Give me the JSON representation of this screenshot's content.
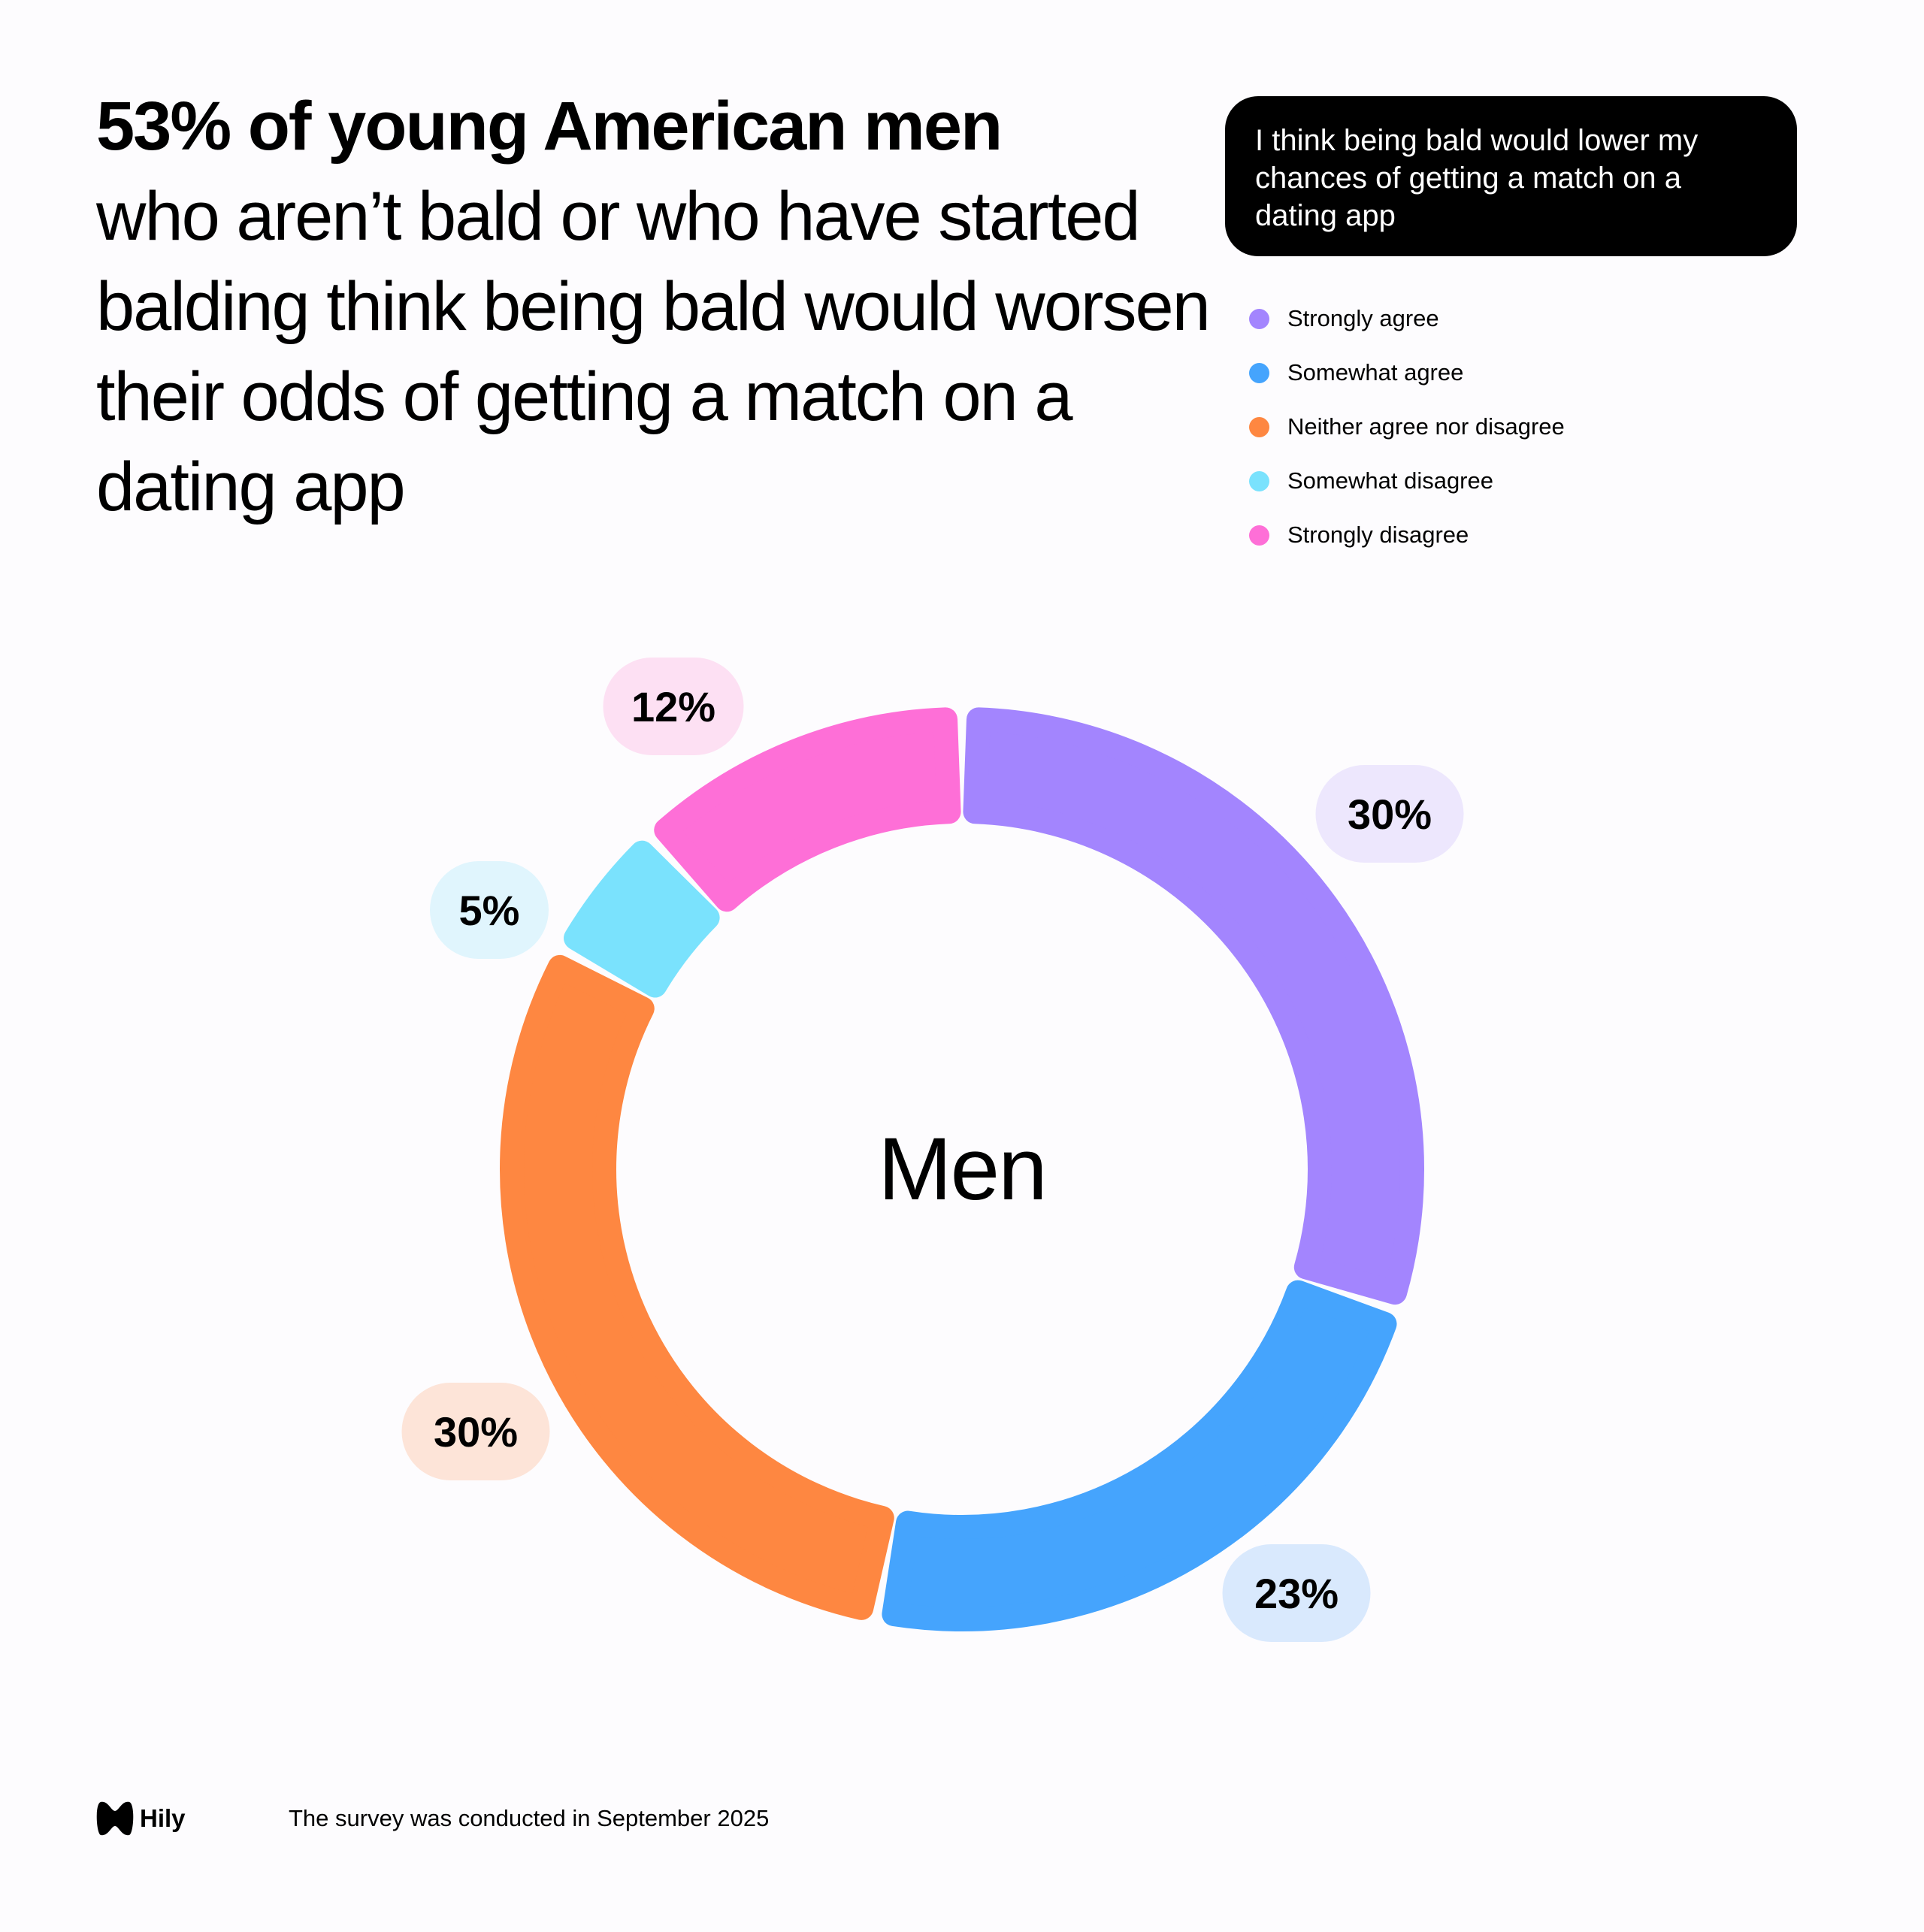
{
  "title": {
    "bold": "53% of young American men",
    "rest": "who aren’t bald or who have started balding think being bald would worsen their odds of getting a match on a dating app"
  },
  "question": "I think being bald would lower my chances of getting a match on a dating app",
  "center_label": "Men",
  "footer": {
    "brand": "Hily",
    "note": "The survey was conducted in September 2025"
  },
  "chart_data": {
    "type": "pie",
    "variant": "donut",
    "title": "I think being bald would lower my chances of getting a match on a dating app",
    "center_label": "Men",
    "legend_position": "top-right",
    "series": [
      {
        "name": "Strongly agree",
        "value": 30,
        "label": "30%",
        "color": "#a385fe",
        "pill": "#ede7fd"
      },
      {
        "name": "Somewhat agree",
        "value": 23,
        "label": "23%",
        "color": "#45a4fd",
        "pill": "#d9e9fd"
      },
      {
        "name": "Neither agree nor disagree",
        "value": 30,
        "label": "30%",
        "color": "#fe8741",
        "pill": "#fde4d8"
      },
      {
        "name": "Somewhat disagree",
        "value": 5,
        "label": "5%",
        "color": "#7ae2fd",
        "pill": "#e0f5fd"
      },
      {
        "name": "Strongly disagree",
        "value": 12,
        "label": "12%",
        "color": "#fe6fd7",
        "pill": "#fde0f3"
      }
    ]
  }
}
